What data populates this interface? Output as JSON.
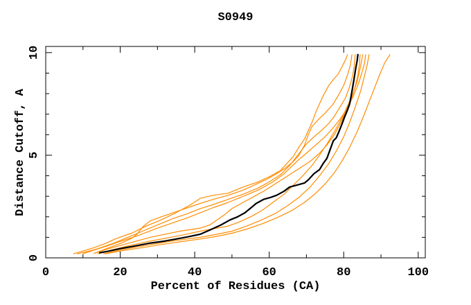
{
  "title": "S0949",
  "chart_data": {
    "type": "line",
    "title": "S0949",
    "xlabel": "Percent of Residues (CA)",
    "ylabel": "Distance Cutoff, A",
    "xlim": [
      0,
      101.9
    ],
    "ylim": [
      0,
      10.3
    ],
    "x_major_ticks": [
      0,
      20,
      40,
      60,
      80,
      100
    ],
    "x_minor_ticks": [
      10,
      30,
      50,
      70,
      90
    ],
    "y_major_ticks": [
      0,
      5,
      10
    ],
    "y_minor_ticks": [
      1,
      2,
      3,
      4,
      6,
      7,
      8,
      9
    ],
    "grid": false,
    "legend_position": "none",
    "colors": {
      "model": "#000000",
      "reference": "#ff8c00",
      "frame": "#000000"
    },
    "series": [
      {
        "name": "orange-curve-1",
        "color": "#ff8c00",
        "width": 1.2,
        "points": [
          [
            7.5,
            0.2
          ],
          [
            10,
            0.33
          ],
          [
            13,
            0.5
          ],
          [
            16,
            0.7
          ],
          [
            19,
            0.95
          ],
          [
            23,
            1.2
          ],
          [
            27,
            1.55
          ],
          [
            31,
            1.85
          ],
          [
            35,
            2.2
          ],
          [
            39,
            2.6
          ],
          [
            41.5,
            2.9
          ],
          [
            45,
            3.05
          ],
          [
            49,
            3.15
          ],
          [
            53,
            3.45
          ],
          [
            57,
            3.7
          ],
          [
            60,
            3.95
          ],
          [
            63,
            4.25
          ],
          [
            65,
            4.65
          ],
          [
            66.5,
            4.95
          ],
          [
            68,
            5.4
          ],
          [
            69.5,
            5.8
          ],
          [
            70.5,
            6.2
          ],
          [
            71.5,
            6.6
          ],
          [
            72.5,
            7.1
          ],
          [
            73.5,
            7.5
          ],
          [
            74.5,
            7.9
          ],
          [
            76,
            8.4
          ],
          [
            77.5,
            8.75
          ],
          [
            78.5,
            8.95
          ],
          [
            79.5,
            9.3
          ],
          [
            80.5,
            9.65
          ],
          [
            81,
            9.9
          ]
        ]
      },
      {
        "name": "orange-curve-2",
        "color": "#ff8c00",
        "width": 1.2,
        "points": [
          [
            8.5,
            0.2
          ],
          [
            11,
            0.3
          ],
          [
            14,
            0.45
          ],
          [
            18,
            0.7
          ],
          [
            22,
            1.0
          ],
          [
            26,
            1.3
          ],
          [
            30,
            1.6
          ],
          [
            34,
            1.9
          ],
          [
            38,
            2.15
          ],
          [
            41.5,
            2.4
          ],
          [
            45,
            2.6
          ],
          [
            49,
            2.85
          ],
          [
            53,
            3.1
          ],
          [
            57,
            3.4
          ],
          [
            60,
            3.7
          ],
          [
            63,
            4.05
          ],
          [
            65.5,
            4.5
          ],
          [
            67,
            4.85
          ],
          [
            68.5,
            5.2
          ],
          [
            70,
            5.55
          ],
          [
            72,
            5.9
          ],
          [
            74,
            6.2
          ],
          [
            76,
            6.55
          ],
          [
            77.5,
            6.9
          ],
          [
            79,
            7.35
          ],
          [
            80.5,
            7.8
          ],
          [
            81.5,
            8.3
          ],
          [
            82.3,
            8.8
          ],
          [
            82.8,
            9.3
          ],
          [
            83.1,
            9.9
          ]
        ]
      },
      {
        "name": "orange-curve-3",
        "color": "#ff8c00",
        "width": 1.2,
        "points": [
          [
            10,
            0.2
          ],
          [
            13,
            0.38
          ],
          [
            16,
            0.55
          ],
          [
            20,
            0.8
          ],
          [
            25,
            1.1
          ],
          [
            30,
            1.45
          ],
          [
            34,
            1.7
          ],
          [
            38,
            1.95
          ],
          [
            41.5,
            2.2
          ],
          [
            45,
            2.45
          ],
          [
            49,
            2.7
          ],
          [
            53,
            3.0
          ],
          [
            57,
            3.3
          ],
          [
            61,
            3.7
          ],
          [
            64,
            4.1
          ],
          [
            66,
            4.45
          ],
          [
            68,
            4.8
          ],
          [
            70,
            5.1
          ],
          [
            72.5,
            5.5
          ],
          [
            75,
            5.9
          ],
          [
            77,
            6.3
          ],
          [
            79,
            6.75
          ],
          [
            81,
            7.3
          ],
          [
            82.5,
            7.85
          ],
          [
            84,
            8.5
          ],
          [
            85,
            9.1
          ],
          [
            85.6,
            9.5
          ],
          [
            85.9,
            9.9
          ]
        ]
      },
      {
        "name": "orange-curve-4",
        "color": "#ff8c00",
        "width": 1.2,
        "points": [
          [
            13,
            0.22
          ],
          [
            16,
            0.4
          ],
          [
            20,
            0.6
          ],
          [
            24,
            0.8
          ],
          [
            28,
            1.0
          ],
          [
            32,
            1.15
          ],
          [
            36,
            1.3
          ],
          [
            41.5,
            1.45
          ],
          [
            44,
            1.6
          ],
          [
            46,
            1.85
          ],
          [
            48,
            2.1
          ],
          [
            50,
            2.4
          ],
          [
            53,
            2.7
          ],
          [
            56,
            3.0
          ],
          [
            59,
            3.3
          ],
          [
            62,
            3.65
          ],
          [
            65,
            4.0
          ],
          [
            68,
            4.35
          ],
          [
            71,
            4.7
          ],
          [
            73.5,
            5.1
          ],
          [
            75.5,
            5.5
          ],
          [
            77.5,
            6.0
          ],
          [
            79,
            6.5
          ],
          [
            80.5,
            7.1
          ],
          [
            82,
            7.7
          ],
          [
            83,
            8.3
          ],
          [
            83.8,
            8.9
          ],
          [
            84.2,
            9.4
          ],
          [
            84.4,
            9.9
          ]
        ]
      },
      {
        "name": "orange-curve-5",
        "color": "#ff8c00",
        "width": 1.2,
        "points": [
          [
            14,
            0.2
          ],
          [
            18,
            0.4
          ],
          [
            22,
            0.58
          ],
          [
            27,
            0.78
          ],
          [
            32,
            0.95
          ],
          [
            37,
            1.12
          ],
          [
            41.5,
            1.3
          ],
          [
            45,
            1.42
          ],
          [
            49,
            1.55
          ],
          [
            52,
            1.75
          ],
          [
            55,
            2.0
          ],
          [
            58,
            2.3
          ],
          [
            61,
            2.7
          ],
          [
            64,
            3.1
          ],
          [
            66.5,
            3.55
          ],
          [
            69,
            4.0
          ],
          [
            71.5,
            4.5
          ],
          [
            73.5,
            5.0
          ],
          [
            75.5,
            5.55
          ],
          [
            77.5,
            6.15
          ],
          [
            79.5,
            6.8
          ],
          [
            81,
            7.4
          ],
          [
            82.5,
            8.0
          ],
          [
            83.7,
            8.65
          ],
          [
            84.5,
            9.3
          ],
          [
            85.1,
            9.9
          ]
        ]
      },
      {
        "name": "orange-curve-6",
        "color": "#ff8c00",
        "width": 1.2,
        "points": [
          [
            15.5,
            0.2
          ],
          [
            20,
            0.38
          ],
          [
            25,
            0.55
          ],
          [
            30,
            0.7
          ],
          [
            35,
            0.85
          ],
          [
            41.5,
            1.0
          ],
          [
            46,
            1.15
          ],
          [
            50,
            1.3
          ],
          [
            54,
            1.55
          ],
          [
            58,
            1.85
          ],
          [
            62,
            2.2
          ],
          [
            65,
            2.55
          ],
          [
            68,
            2.95
          ],
          [
            71,
            3.45
          ],
          [
            73.5,
            4.0
          ],
          [
            76,
            4.6
          ],
          [
            78,
            5.2
          ],
          [
            80,
            5.9
          ],
          [
            81.5,
            6.55
          ],
          [
            83,
            7.3
          ],
          [
            84.5,
            8.1
          ],
          [
            85.5,
            8.8
          ],
          [
            86.3,
            9.4
          ],
          [
            86.8,
            9.9
          ]
        ]
      },
      {
        "name": "orange-curve-7",
        "color": "#ff8c00",
        "width": 1.2,
        "points": [
          [
            16,
            0.2
          ],
          [
            21,
            0.36
          ],
          [
            26,
            0.5
          ],
          [
            31,
            0.65
          ],
          [
            36,
            0.78
          ],
          [
            41.5,
            0.92
          ],
          [
            46,
            1.05
          ],
          [
            50,
            1.2
          ],
          [
            54,
            1.4
          ],
          [
            58,
            1.65
          ],
          [
            62,
            1.95
          ],
          [
            66,
            2.3
          ],
          [
            69.5,
            2.7
          ],
          [
            72.5,
            3.15
          ],
          [
            75,
            3.6
          ],
          [
            77.5,
            4.15
          ],
          [
            79.5,
            4.7
          ],
          [
            81.5,
            5.35
          ],
          [
            83.5,
            6.1
          ],
          [
            85,
            6.75
          ],
          [
            86.5,
            7.45
          ],
          [
            88,
            8.15
          ],
          [
            89.5,
            8.85
          ],
          [
            91,
            9.5
          ],
          [
            92.4,
            9.9
          ]
        ]
      },
      {
        "name": "orange-curve-8",
        "color": "#ff8c00",
        "width": 1.2,
        "points": [
          [
            13.5,
            0.25
          ],
          [
            17,
            0.5
          ],
          [
            20,
            0.7
          ],
          [
            23,
            0.95
          ],
          [
            24.5,
            1.15
          ],
          [
            26,
            1.5
          ],
          [
            28,
            1.8
          ],
          [
            31,
            2.0
          ],
          [
            35,
            2.25
          ],
          [
            39,
            2.5
          ],
          [
            41.5,
            2.65
          ],
          [
            45,
            2.85
          ],
          [
            49,
            3.05
          ],
          [
            53,
            3.3
          ],
          [
            56,
            3.55
          ],
          [
            59,
            3.8
          ],
          [
            62,
            4.1
          ],
          [
            64.5,
            4.4
          ],
          [
            66.5,
            4.7
          ],
          [
            68,
            5.0
          ],
          [
            69.5,
            5.5
          ],
          [
            70.5,
            6.0
          ],
          [
            71.5,
            6.4
          ],
          [
            73,
            6.7
          ],
          [
            75,
            7.05
          ],
          [
            77,
            7.45
          ],
          [
            78.5,
            7.9
          ],
          [
            80,
            8.4
          ],
          [
            81,
            8.9
          ],
          [
            81.8,
            9.4
          ],
          [
            82.2,
            9.9
          ]
        ]
      },
      {
        "name": "black-curve",
        "color": "#000000",
        "width": 2.25,
        "points": [
          [
            14.5,
            0.25
          ],
          [
            17,
            0.33
          ],
          [
            20,
            0.45
          ],
          [
            24,
            0.58
          ],
          [
            28,
            0.72
          ],
          [
            32,
            0.82
          ],
          [
            35,
            0.92
          ],
          [
            38,
            1.02
          ],
          [
            41.5,
            1.15
          ],
          [
            44,
            1.35
          ],
          [
            47,
            1.6
          ],
          [
            49.5,
            1.85
          ],
          [
            51.5,
            2.0
          ],
          [
            53.5,
            2.2
          ],
          [
            55.5,
            2.5
          ],
          [
            56.5,
            2.65
          ],
          [
            58.5,
            2.85
          ],
          [
            60.5,
            2.95
          ],
          [
            62,
            3.05
          ],
          [
            64,
            3.25
          ],
          [
            65.5,
            3.45
          ],
          [
            67.5,
            3.55
          ],
          [
            69.5,
            3.65
          ],
          [
            70.5,
            3.8
          ],
          [
            72,
            4.1
          ],
          [
            73.5,
            4.3
          ],
          [
            74.5,
            4.6
          ],
          [
            75.5,
            4.85
          ],
          [
            76.5,
            5.35
          ],
          [
            77.2,
            5.7
          ],
          [
            78,
            5.85
          ],
          [
            78.6,
            6.1
          ],
          [
            79.5,
            6.5
          ],
          [
            80.2,
            6.85
          ],
          [
            81,
            7.2
          ],
          [
            81.6,
            7.5
          ],
          [
            82,
            7.9
          ],
          [
            82.4,
            8.3
          ],
          [
            82.8,
            8.75
          ],
          [
            83.2,
            9.2
          ],
          [
            83.6,
            9.6
          ],
          [
            83.8,
            9.9
          ]
        ]
      }
    ]
  }
}
